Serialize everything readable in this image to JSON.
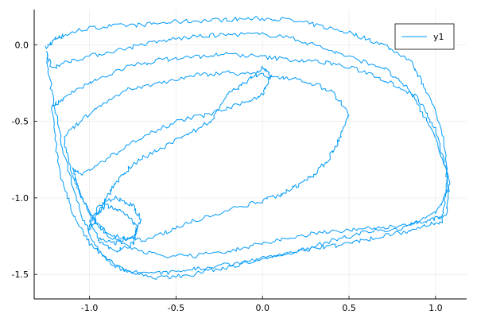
{
  "chart_data": {
    "type": "line",
    "title": "",
    "xlabel": "",
    "ylabel": "",
    "xlim": [
      -1.32,
      1.18
    ],
    "ylim": [
      -1.66,
      0.23
    ],
    "xticks": [
      -1.0,
      -0.5,
      0.0,
      0.5,
      1.0
    ],
    "xtick_labels": [
      "-1.0",
      "-0.5",
      "0.0",
      "0.5",
      "1.0"
    ],
    "yticks": [
      0.0,
      -0.5,
      -1.0,
      -1.5
    ],
    "ytick_labels": [
      "0.0",
      "-0.5",
      "-1.0",
      "-1.5"
    ],
    "grid": true,
    "legend_position": "top-right",
    "series": [
      {
        "name": "y1",
        "color": "#009AFA",
        "x": [
          -1.25,
          -1.2,
          -1.15,
          -1.05,
          -0.9,
          -0.7,
          -0.5,
          -0.3,
          -0.1,
          0.1,
          0.3,
          0.5,
          0.7,
          0.85,
          0.95,
          1.05,
          1.07,
          1.0,
          0.8,
          0.6,
          0.4,
          0.2,
          0.0,
          -0.2,
          -0.4,
          -0.6,
          -0.8,
          -0.95,
          -1.05,
          -1.15,
          -1.22,
          -1.25,
          -1.22,
          -1.1,
          -0.9,
          -0.7,
          -0.5,
          -0.3,
          -0.1,
          0.1,
          0.3,
          0.5,
          0.7,
          0.85,
          0.98,
          1.07,
          1.04,
          0.9,
          0.7,
          0.5,
          0.3,
          0.1,
          -0.1,
          -0.3,
          -0.5,
          -0.7,
          -0.85,
          -1.0,
          -1.1,
          -1.18,
          -1.22,
          -1.15,
          -1.0,
          -0.8,
          -0.6,
          -0.4,
          -0.2,
          0.0,
          0.2,
          0.4,
          0.6,
          0.75,
          0.9,
          1.0,
          1.08,
          1.06,
          0.95,
          0.8,
          0.6,
          0.4,
          0.2,
          0.0,
          -0.2,
          -0.4,
          -0.6,
          -0.75,
          -0.9,
          -1.0,
          -1.1,
          -1.15,
          -1.0,
          -0.8,
          -0.6,
          -0.4,
          -0.2,
          0.0,
          0.2,
          0.4,
          0.5,
          0.45,
          0.38,
          0.3,
          0.2,
          0.1,
          0.0,
          -0.2,
          -0.4,
          -0.55,
          -0.7,
          -0.85,
          -0.95,
          -1.05,
          -1.1,
          -1.05,
          -0.9,
          -0.7,
          -0.5,
          -0.3,
          -0.1,
          0.0,
          0.05,
          0.0,
          -0.1,
          -0.2,
          -0.3,
          -0.45,
          -0.6,
          -0.75,
          -0.85,
          -0.9,
          -0.95,
          -1.0,
          -0.95,
          -0.85,
          -0.75,
          -0.7,
          -0.75,
          -0.85,
          -0.95,
          -1.0,
          -0.9,
          -0.8,
          -0.72,
          -0.75,
          -0.85,
          -0.95
        ],
        "y": [
          -0.02,
          0.04,
          0.06,
          0.1,
          0.12,
          0.13,
          0.15,
          0.16,
          0.17,
          0.17,
          0.13,
          0.08,
          0.0,
          -0.1,
          -0.3,
          -0.6,
          -0.95,
          -1.1,
          -1.2,
          -1.22,
          -1.28,
          -1.35,
          -1.4,
          -1.45,
          -1.5,
          -1.52,
          -1.48,
          -1.35,
          -1.1,
          -0.7,
          -0.3,
          -0.05,
          -0.15,
          -0.1,
          -0.05,
          0.0,
          0.04,
          0.06,
          0.07,
          0.06,
          0.0,
          -0.08,
          -0.15,
          -0.3,
          -0.55,
          -0.85,
          -1.15,
          -1.2,
          -1.25,
          -1.3,
          -1.33,
          -1.37,
          -1.42,
          -1.45,
          -1.48,
          -1.5,
          -1.45,
          -1.3,
          -1.1,
          -0.8,
          -0.4,
          -0.35,
          -0.25,
          -0.15,
          -0.1,
          -0.08,
          -0.06,
          -0.08,
          -0.1,
          -0.12,
          -0.18,
          -0.25,
          -0.35,
          -0.55,
          -0.9,
          -1.12,
          -1.15,
          -1.18,
          -1.2,
          -1.22,
          -1.25,
          -1.3,
          -1.35,
          -1.38,
          -1.38,
          -1.33,
          -1.25,
          -1.1,
          -0.85,
          -0.6,
          -0.45,
          -0.3,
          -0.25,
          -0.2,
          -0.18,
          -0.2,
          -0.22,
          -0.3,
          -0.45,
          -0.6,
          -0.75,
          -0.85,
          -0.92,
          -0.98,
          -1.02,
          -1.08,
          -1.15,
          -1.22,
          -1.28,
          -1.25,
          -1.18,
          -1.0,
          -0.8,
          -0.85,
          -0.75,
          -0.6,
          -0.5,
          -0.45,
          -0.38,
          -0.32,
          -0.2,
          -0.15,
          -0.25,
          -0.32,
          -0.5,
          -0.6,
          -0.68,
          -0.78,
          -0.9,
          -1.0,
          -1.1,
          -1.2,
          -1.05,
          -1.0,
          -1.05,
          -1.15,
          -1.25,
          -1.3,
          -1.25,
          -1.15,
          -1.05,
          -1.1,
          -1.2,
          -1.3,
          -1.35,
          -1.28
        ]
      }
    ]
  }
}
